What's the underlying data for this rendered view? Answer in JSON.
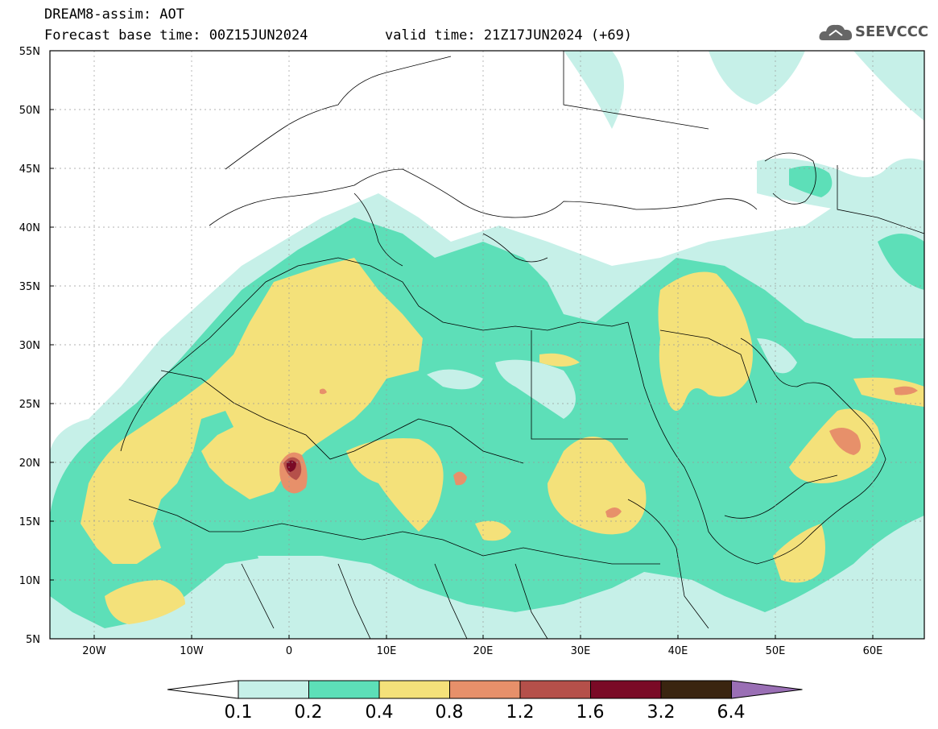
{
  "header": {
    "line1": "DREAM8-assim: AOT",
    "line2": "Forecast base time: 00Z15JUN2024",
    "valid": "valid time: 21Z17JUN2024 (+69)",
    "logo_text": "SEEVCCC"
  },
  "map": {
    "lat_ticks": [
      "55N",
      "50N",
      "45N",
      "40N",
      "35N",
      "30N",
      "25N",
      "20N",
      "15N",
      "10N",
      "5N"
    ],
    "lon_ticks": [
      "20W",
      "10W",
      "0",
      "10E",
      "20E",
      "30E",
      "40E",
      "50E",
      "60E"
    ],
    "lat_range": [
      5,
      55
    ],
    "lon_range": [
      -25,
      65
    ],
    "grid": "dashed",
    "variable": "Aerosol optical thickness"
  },
  "colorbar": {
    "labels": [
      "0.1",
      "0.2",
      "0.4",
      "0.8",
      "1.2",
      "1.6",
      "3.2",
      "6.4"
    ],
    "colors": [
      "#ffffff",
      "#c6f0e8",
      "#5ddfb8",
      "#f4e17a",
      "#e7906a",
      "#b5504a",
      "#7a0a26",
      "#3a2510",
      "#9a6fb5"
    ]
  },
  "colors": {
    "c1": "#c6f0e8",
    "c2": "#5ddfb8",
    "c3": "#f4e17a",
    "c4": "#e7906a",
    "c5": "#b5504a",
    "c6": "#7a0a26"
  }
}
